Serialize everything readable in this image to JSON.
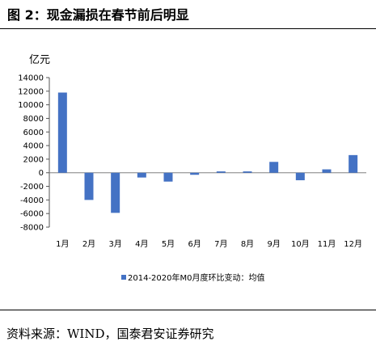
{
  "header": {
    "title": "图 2：现金漏损在春节前后明显"
  },
  "footer": {
    "source": "资料来源：WIND，国泰君安证券研究"
  },
  "chart_data": {
    "type": "bar",
    "unit_label": "亿元",
    "categories": [
      "1月",
      "2月",
      "3月",
      "4月",
      "5月",
      "6月",
      "7月",
      "8月",
      "9月",
      "10月",
      "11月",
      "12月"
    ],
    "series": [
      {
        "name": "2014-2020年M0月度环比变动：均值",
        "values": [
          11800,
          -4000,
          -5900,
          -700,
          -1300,
          -300,
          200,
          200,
          1600,
          -1100,
          500,
          2600
        ],
        "color": "#4472C4"
      }
    ],
    "ylim": [
      -8000,
      14000
    ],
    "yticks": [
      14000,
      12000,
      10000,
      8000,
      6000,
      4000,
      2000,
      0,
      -2000,
      -4000,
      -6000,
      -8000
    ],
    "grid": false,
    "legend_position": "bottom"
  }
}
